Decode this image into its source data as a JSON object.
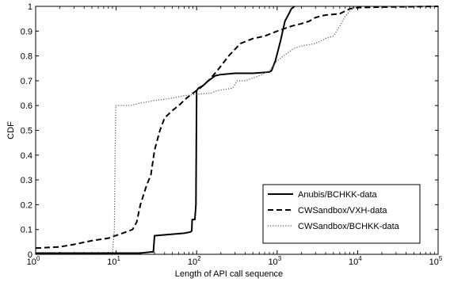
{
  "chart_data": {
    "type": "line",
    "title": "",
    "xlabel": "Length of API call sequence",
    "ylabel": "CDF",
    "xscale": "log",
    "xlim": [
      1,
      100000
    ],
    "ylim": [
      0,
      1
    ],
    "grid": false,
    "legend_position": "lower-right",
    "x_ticks": [
      {
        "value": 1,
        "base": "10",
        "exp": "0"
      },
      {
        "value": 10,
        "base": "10",
        "exp": "1"
      },
      {
        "value": 100,
        "base": "10",
        "exp": "2"
      },
      {
        "value": 1000,
        "base": "10",
        "exp": "3"
      },
      {
        "value": 10000,
        "base": "10",
        "exp": "4"
      },
      {
        "value": 100000,
        "base": "10",
        "exp": "5"
      }
    ],
    "y_ticks": [
      {
        "value": 0,
        "label": "0"
      },
      {
        "value": 0.1,
        "label": "0.1"
      },
      {
        "value": 0.2,
        "label": "0.2"
      },
      {
        "value": 0.3,
        "label": "0.3"
      },
      {
        "value": 0.4,
        "label": "0.4"
      },
      {
        "value": 0.5,
        "label": "0.5"
      },
      {
        "value": 0.6,
        "label": "0.6"
      },
      {
        "value": 0.7,
        "label": "0.7"
      },
      {
        "value": 0.8,
        "label": "0.8"
      },
      {
        "value": 0.9,
        "label": "0.9"
      },
      {
        "value": 1,
        "label": "1"
      }
    ],
    "series": [
      {
        "name": "Anubis/BCHKK-data",
        "style": "solid",
        "color": "#000000",
        "points": [
          [
            1,
            0.005
          ],
          [
            20,
            0.005
          ],
          [
            28,
            0.01
          ],
          [
            29,
            0.01
          ],
          [
            30,
            0.075
          ],
          [
            45,
            0.08
          ],
          [
            70,
            0.085
          ],
          [
            84,
            0.09
          ],
          [
            87,
            0.095
          ],
          [
            88,
            0.14
          ],
          [
            95,
            0.14
          ],
          [
            98,
            0.2
          ],
          [
            100,
            0.66
          ],
          [
            105,
            0.67
          ],
          [
            120,
            0.68
          ],
          [
            140,
            0.7
          ],
          [
            170,
            0.72
          ],
          [
            200,
            0.725
          ],
          [
            300,
            0.73
          ],
          [
            500,
            0.73
          ],
          [
            800,
            0.735
          ],
          [
            850,
            0.74
          ],
          [
            950,
            0.78
          ],
          [
            1100,
            0.86
          ],
          [
            1250,
            0.94
          ],
          [
            1400,
            0.97
          ],
          [
            1500,
            0.99
          ],
          [
            1650,
            1.0
          ]
        ]
      },
      {
        "name": "CWSandbox/VXH-data",
        "style": "dashed",
        "color": "#000000",
        "points": [
          [
            1,
            0.025
          ],
          [
            2,
            0.03
          ],
          [
            3,
            0.04
          ],
          [
            5,
            0.055
          ],
          [
            8,
            0.065
          ],
          [
            12,
            0.085
          ],
          [
            16,
            0.1
          ],
          [
            18,
            0.13
          ],
          [
            20,
            0.2
          ],
          [
            24,
            0.28
          ],
          [
            27,
            0.32
          ],
          [
            30,
            0.42
          ],
          [
            35,
            0.5
          ],
          [
            40,
            0.55
          ],
          [
            50,
            0.58
          ],
          [
            60,
            0.6
          ],
          [
            75,
            0.63
          ],
          [
            90,
            0.65
          ],
          [
            110,
            0.67
          ],
          [
            140,
            0.7
          ],
          [
            180,
            0.74
          ],
          [
            250,
            0.8
          ],
          [
            350,
            0.85
          ],
          [
            500,
            0.87
          ],
          [
            700,
            0.88
          ],
          [
            1000,
            0.9
          ],
          [
            1500,
            0.92
          ],
          [
            2000,
            0.93
          ],
          [
            2500,
            0.94
          ],
          [
            3000,
            0.955
          ],
          [
            4000,
            0.965
          ],
          [
            6000,
            0.97
          ],
          [
            8000,
            0.99
          ],
          [
            10000,
            0.995
          ],
          [
            20000,
            0.997
          ],
          [
            100000,
            1.0
          ]
        ]
      },
      {
        "name": "CWSandbox/BCHKK-data",
        "style": "dotted",
        "color": "#555555",
        "points": [
          [
            1,
            0.0
          ],
          [
            9,
            0.0
          ],
          [
            9.5,
            0.1
          ],
          [
            9.7,
            0.4
          ],
          [
            9.9,
            0.6
          ],
          [
            15,
            0.6
          ],
          [
            20,
            0.61
          ],
          [
            30,
            0.62
          ],
          [
            50,
            0.63
          ],
          [
            70,
            0.64
          ],
          [
            100,
            0.645
          ],
          [
            150,
            0.65
          ],
          [
            180,
            0.66
          ],
          [
            220,
            0.665
          ],
          [
            280,
            0.67
          ],
          [
            320,
            0.7
          ],
          [
            400,
            0.7
          ],
          [
            600,
            0.72
          ],
          [
            800,
            0.74
          ],
          [
            1000,
            0.78
          ],
          [
            1200,
            0.8
          ],
          [
            1600,
            0.83
          ],
          [
            2000,
            0.84
          ],
          [
            3000,
            0.85
          ],
          [
            4000,
            0.87
          ],
          [
            5000,
            0.88
          ],
          [
            6000,
            0.92
          ],
          [
            7000,
            0.96
          ],
          [
            8000,
            0.98
          ],
          [
            9000,
            1.0
          ]
        ]
      }
    ]
  }
}
